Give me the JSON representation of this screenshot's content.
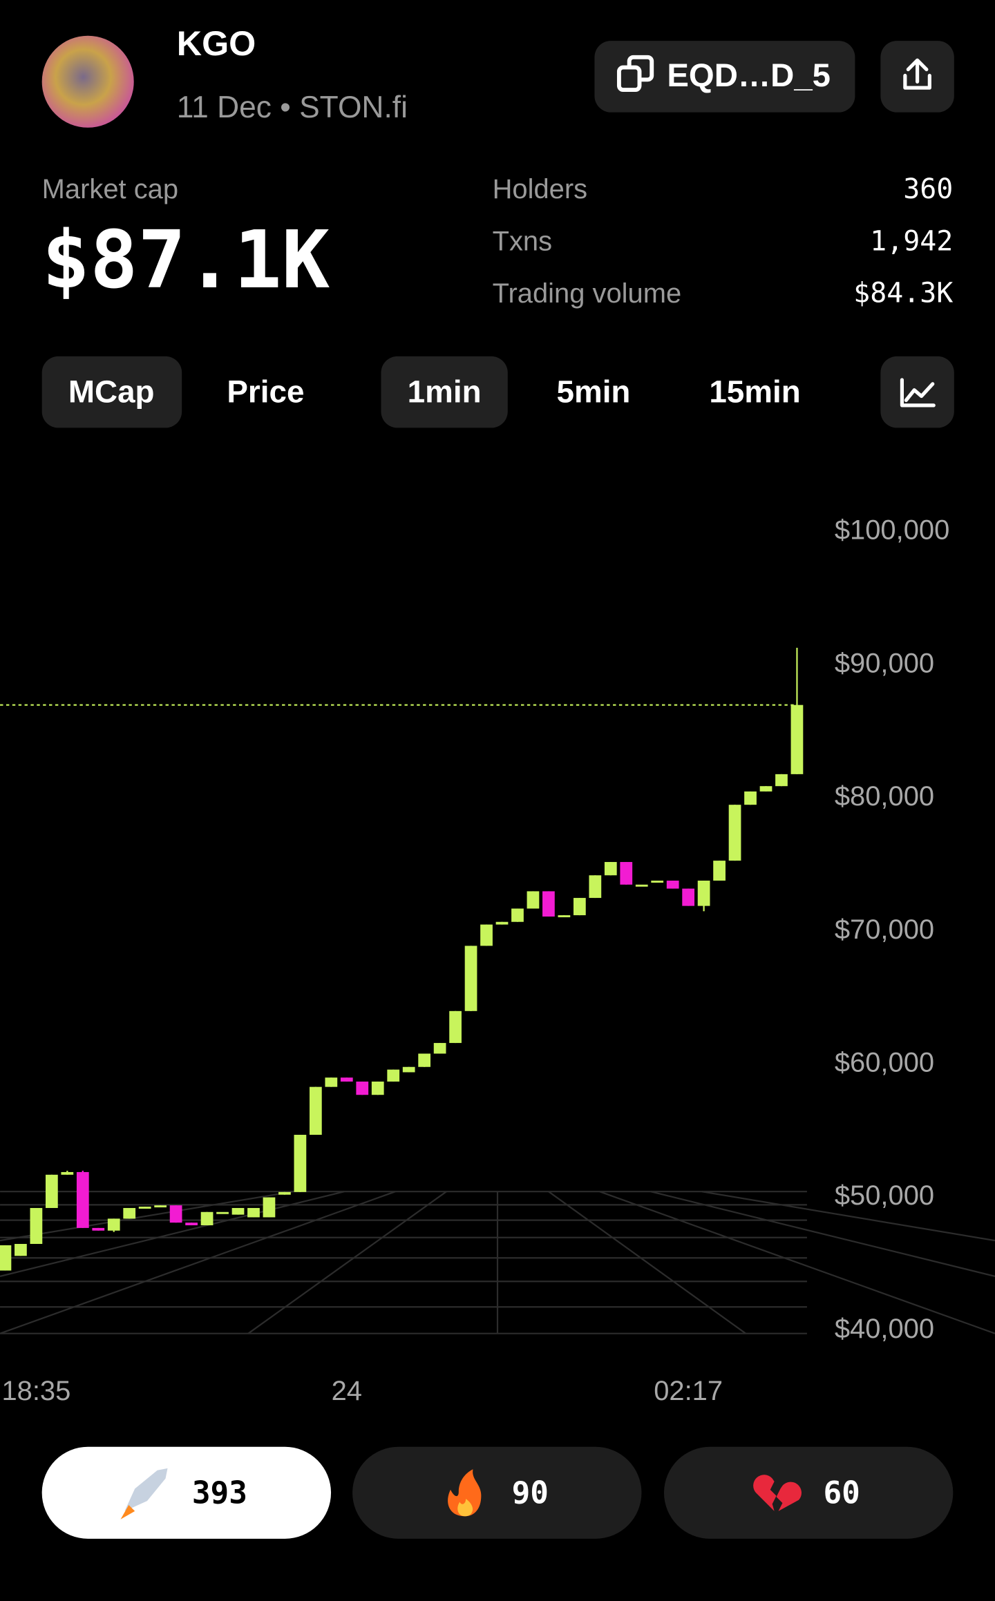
{
  "header": {
    "token": "KGO",
    "subtitle": "11 Dec • STON.fi",
    "address": "EQD…D_5"
  },
  "stats": {
    "market_cap_label": "Market cap",
    "market_cap": "$87.1K",
    "rows": [
      [
        "Holders",
        "360"
      ],
      [
        "Txns",
        "1,942"
      ],
      [
        "Trading volume",
        "$84.3K"
      ]
    ]
  },
  "tabs": {
    "metric": [
      "MCap",
      "Price"
    ],
    "interval": [
      "1min",
      "5min",
      "15min"
    ]
  },
  "reactions": [
    393,
    90,
    60
  ],
  "chart_data": {
    "type": "candlestick",
    "categories": [
      null,
      null,
      "18:35",
      null,
      null,
      null,
      null,
      null,
      null,
      null,
      null,
      null,
      null,
      null,
      null,
      null,
      null,
      null,
      null,
      null,
      null,
      null,
      "24",
      null,
      null,
      null,
      null,
      null,
      null,
      null,
      null,
      null,
      null,
      null,
      null,
      null,
      null,
      null,
      null,
      null,
      null,
      null,
      null,
      null,
      "02:17",
      null,
      null,
      null,
      null,
      null,
      null,
      null
    ],
    "open": [
      44500,
      45600,
      46500,
      49200,
      51700,
      51900,
      47700,
      47500,
      48400,
      49200,
      49300,
      49400,
      48100,
      47900,
      48900,
      48700,
      48500,
      48500,
      50200,
      50400,
      54700,
      58300,
      59000,
      58700,
      57700,
      58700,
      59400,
      59800,
      60800,
      61600,
      64000,
      68900,
      70500,
      70700,
      71700,
      73000,
      71100,
      71200,
      72500,
      74200,
      75200,
      73500,
      73800,
      73800,
      73200,
      71900,
      73800,
      75300,
      79500,
      80500,
      80900,
      81800
    ],
    "high": [
      46400,
      46500,
      49200,
      51700,
      52000,
      52000,
      47700,
      48400,
      49200,
      49300,
      49400,
      49400,
      48100,
      48900,
      48900,
      49200,
      49200,
      50000,
      50400,
      54700,
      58300,
      59000,
      59000,
      58700,
      58700,
      59600,
      59800,
      60800,
      61600,
      64000,
      68900,
      70500,
      70700,
      71700,
      73000,
      73000,
      71200,
      72500,
      74200,
      75200,
      75200,
      73500,
      73800,
      73800,
      73200,
      73800,
      75300,
      79500,
      80500,
      80900,
      81800,
      91300
    ],
    "low": [
      44500,
      45600,
      46500,
      49200,
      51700,
      47700,
      47500,
      47400,
      48400,
      49200,
      49300,
      48100,
      47900,
      47900,
      48900,
      48700,
      48500,
      48500,
      50200,
      50400,
      54700,
      58300,
      58700,
      57700,
      57700,
      58700,
      59400,
      59800,
      60800,
      61600,
      64000,
      68900,
      70500,
      70700,
      71700,
      71100,
      71100,
      71200,
      72500,
      74200,
      73500,
      73500,
      73800,
      73200,
      71900,
      71500,
      73800,
      75300,
      79500,
      80500,
      80900,
      81800
    ],
    "close": [
      46400,
      46500,
      49200,
      51700,
      51900,
      47700,
      47500,
      48400,
      49200,
      49300,
      49400,
      48100,
      47900,
      48900,
      48900,
      49200,
      49200,
      50000,
      50400,
      54700,
      58300,
      59000,
      58700,
      57700,
      58700,
      59600,
      59800,
      60800,
      61600,
      64000,
      68900,
      70500,
      70700,
      71700,
      73000,
      71100,
      71200,
      72500,
      74200,
      75200,
      73500,
      73500,
      73800,
      73200,
      71900,
      73800,
      75300,
      79500,
      80500,
      80900,
      81800,
      87000
    ],
    "up_color": "#c8f45c",
    "down_color": "#f21cd2",
    "ylim": [
      40000,
      100000
    ],
    "yticks": [
      {
        "value": 100000,
        "label": "$100,000"
      },
      {
        "value": 90000,
        "label": "$90,000"
      },
      {
        "value": 80000,
        "label": "$80,000"
      },
      {
        "value": 70000,
        "label": "$70,000"
      },
      {
        "value": 60000,
        "label": "$60,000"
      },
      {
        "value": 50000,
        "label": "$50,000"
      },
      {
        "value": 40000,
        "label": "$40,000"
      }
    ]
  }
}
